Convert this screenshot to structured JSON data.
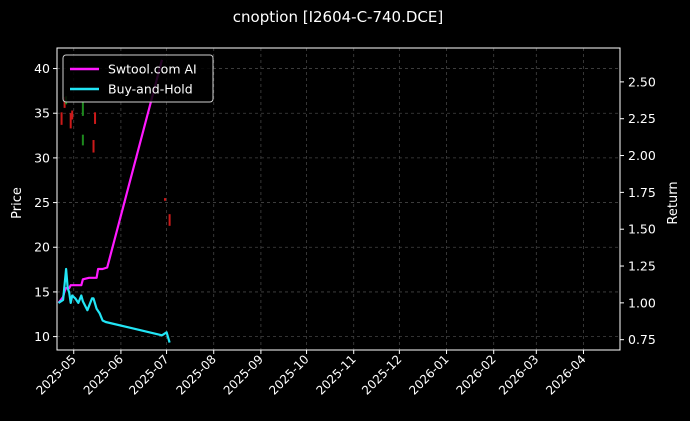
{
  "chart_data": {
    "type": "line",
    "title": "cnoption [I2604-C-740.DCE]",
    "ylabel_left": "Price",
    "ylabel_right": "Return",
    "x_range": [
      "2025-04-20",
      "2026-04-25"
    ],
    "x_ticks": [
      "2025-05",
      "2025-06",
      "2025-07",
      "2025-08",
      "2025-09",
      "2025-10",
      "2025-11",
      "2025-12",
      "2026-01",
      "2026-02",
      "2026-03",
      "2026-04"
    ],
    "y_left_range": [
      8.5,
      42.3
    ],
    "y_left_ticks": [
      10,
      15,
      20,
      25,
      30,
      35,
      40
    ],
    "y_right_range": [
      0.68,
      2.73
    ],
    "y_right_ticks": [
      0.75,
      1.0,
      1.25,
      1.5,
      1.75,
      2.0,
      2.25,
      2.5
    ],
    "grid": true,
    "legend_position": "top-left",
    "colors": {
      "background": "#000000",
      "grid": "#444444",
      "strategy": "#ff19ff",
      "benchmark": "#22e5f5",
      "candle_up": "#1d8a1d",
      "candle_down": "#cc1a1a"
    },
    "series": [
      {
        "name": "Swtool.com AI",
        "axis": "right",
        "x": [
          "2025-04-21",
          "2025-04-24",
          "2025-04-25",
          "2025-04-26",
          "2025-04-27",
          "2025-04-28",
          "2025-04-29",
          "2025-04-30",
          "2025-05-03",
          "2025-05-06",
          "2025-05-07",
          "2025-05-11",
          "2025-05-12",
          "2025-05-16",
          "2025-05-17",
          "2025-05-20",
          "2025-05-23",
          "2025-06-28"
        ],
        "values": [
          1.0,
          1.04,
          1.08,
          1.1,
          1.1,
          1.1,
          1.12,
          1.12,
          1.12,
          1.12,
          1.16,
          1.17,
          1.17,
          1.17,
          1.23,
          1.23,
          1.24,
          2.65
        ]
      },
      {
        "name": "Buy-and-Hold",
        "axis": "right",
        "x": [
          "2025-04-21",
          "2025-04-24",
          "2025-04-26",
          "2025-04-27",
          "2025-04-28",
          "2025-04-29",
          "2025-04-30",
          "2025-05-02",
          "2025-05-04",
          "2025-05-06",
          "2025-05-07",
          "2025-05-10",
          "2025-05-13",
          "2025-05-14",
          "2025-05-16",
          "2025-05-18",
          "2025-05-20",
          "2025-05-22",
          "2025-06-28",
          "2025-07-01",
          "2025-07-03"
        ],
        "values": [
          1.0,
          1.02,
          1.23,
          1.1,
          1.07,
          1.0,
          1.05,
          1.03,
          1.0,
          1.05,
          1.01,
          0.95,
          1.03,
          1.03,
          0.96,
          0.93,
          0.88,
          0.87,
          0.78,
          0.8,
          0.73
        ]
      }
    ],
    "candles": [
      {
        "x": "2025-04-23",
        "low": 33.7,
        "high": 35.1,
        "dir": "down"
      },
      {
        "x": "2025-04-25",
        "low": 35.6,
        "high": 36.8,
        "dir": "down"
      },
      {
        "x": "2025-04-26",
        "low": 36.0,
        "high": 36.9,
        "dir": "up"
      },
      {
        "x": "2025-04-29",
        "low": 33.3,
        "high": 35.0,
        "dir": "down"
      },
      {
        "x": "2025-04-30",
        "low": 34.3,
        "high": 35.3,
        "dir": "down"
      },
      {
        "x": "2025-05-07",
        "low": 34.7,
        "high": 36.2,
        "dir": "up"
      },
      {
        "x": "2025-05-07",
        "low": 31.4,
        "high": 32.6,
        "dir": "up"
      },
      {
        "x": "2025-05-14",
        "low": 30.6,
        "high": 32.0,
        "dir": "down"
      },
      {
        "x": "2025-05-15",
        "low": 33.8,
        "high": 35.1,
        "dir": "down"
      },
      {
        "x": "2025-06-30",
        "low": 25.2,
        "high": 25.5,
        "dir": "down"
      },
      {
        "x": "2025-07-03",
        "low": 22.4,
        "high": 23.7,
        "dir": "down"
      }
    ]
  }
}
